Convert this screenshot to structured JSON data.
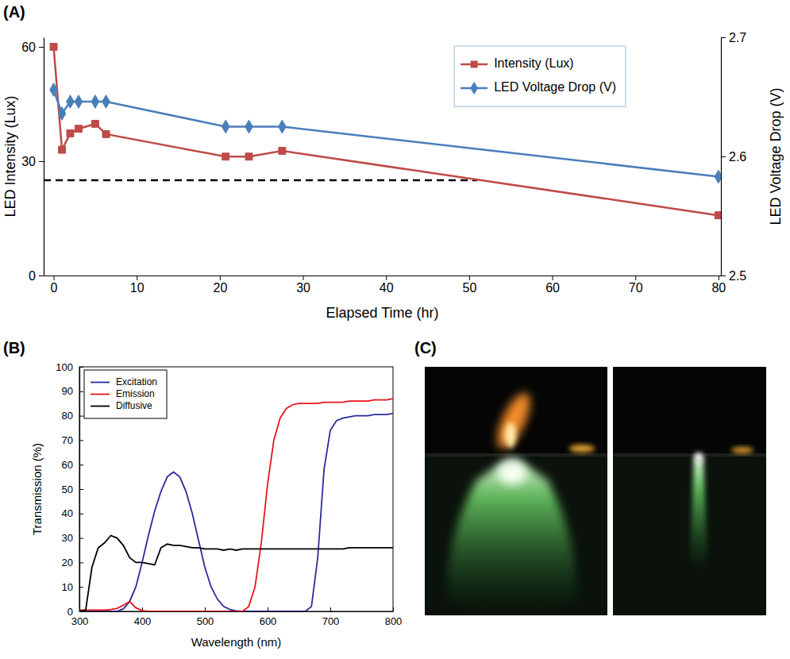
{
  "chart_data": [
    {
      "type": "line",
      "label": "(A)",
      "x": [
        0,
        1,
        2,
        3,
        5,
        6.3,
        20.7,
        23.5,
        27.5,
        80
      ],
      "xlim": [
        -1.2,
        80.3
      ],
      "xticks": [
        0,
        10,
        20,
        30,
        40,
        50,
        60,
        70,
        80
      ],
      "ylim": [
        0,
        62.5
      ],
      "yticks": [
        0,
        30,
        60
      ],
      "y2lim": [
        2.5,
        2.7
      ],
      "y2ticks": [
        2.5,
        2.6,
        2.7
      ],
      "xlabel": "Elapsed Time (hr)",
      "ylabel": "LED Intensity (Lux)",
      "y2label": "LED Voltage Drop (V)",
      "legend": "upper right",
      "threshold": {
        "y": 25,
        "x_end": 51,
        "line_style": "dashed"
      },
      "series": [
        {
          "name": "Intensity (Lux)",
          "color": "#be4b48",
          "marker": "square",
          "line_style": "solid",
          "values": [
            60,
            33,
            37.3,
            38.5,
            39.8,
            37.1,
            31.2,
            31.2,
            32.7,
            15.8
          ]
        },
        {
          "name": "LED Voltage Drop (V)",
          "color": "#4a7ebb",
          "marker": "diamond",
          "line_style": "solid",
          "axis": "y2",
          "values": [
            2.656,
            2.636,
            2.646,
            2.646,
            2.646,
            2.646,
            2.625,
            2.625,
            2.625,
            2.583
          ]
        }
      ]
    },
    {
      "type": "line",
      "label": "(B)",
      "x": [
        300,
        310,
        320,
        330,
        340,
        350,
        360,
        370,
        380,
        390,
        400,
        410,
        420,
        430,
        440,
        450,
        460,
        470,
        480,
        490,
        500,
        510,
        520,
        530,
        540,
        550,
        560,
        570,
        580,
        590,
        600,
        610,
        620,
        630,
        640,
        650,
        660,
        670,
        680,
        690,
        700,
        710,
        720,
        730,
        740,
        750,
        760,
        770,
        780,
        790,
        800
      ],
      "xlim": [
        300,
        800
      ],
      "xticks": [
        300,
        400,
        500,
        600,
        700,
        800
      ],
      "ylim": [
        0,
        100
      ],
      "yticks": [
        0,
        10,
        20,
        30,
        40,
        50,
        60,
        70,
        80,
        90,
        100
      ],
      "xlabel": "Wavelength (nm)",
      "ylabel": "Transmission (%)",
      "legend": "upper left",
      "series": [
        {
          "name": "Excitation",
          "color": "#2b2b9e",
          "line_style": "solid",
          "values": [
            0,
            0,
            0,
            0,
            0,
            0,
            0,
            1,
            4,
            10,
            20,
            31,
            41,
            49,
            55,
            57,
            55,
            49,
            40,
            29,
            18,
            10,
            5,
            2,
            0.8,
            0.2,
            0,
            0,
            0,
            0,
            0,
            0,
            0,
            0,
            0,
            0,
            0,
            2,
            22,
            58,
            74,
            78,
            79,
            79.5,
            80,
            80,
            80,
            80.5,
            80.5,
            80.5,
            81
          ]
        },
        {
          "name": "Emission",
          "color": "#e8151b",
          "line_style": "solid",
          "values": [
            0.5,
            0.5,
            0.5,
            0.5,
            0.5,
            0.8,
            1.2,
            2.5,
            4,
            1.5,
            0.3,
            0,
            0,
            0,
            0,
            0,
            0,
            0,
            0,
            0,
            0,
            0,
            0,
            0,
            0,
            0,
            0,
            2,
            10,
            28,
            52,
            70,
            79,
            83,
            84.5,
            85,
            85,
            85,
            85,
            85.5,
            85.5,
            85.5,
            85.5,
            86,
            86,
            86,
            86,
            86.5,
            86.5,
            86.5,
            87
          ]
        },
        {
          "name": "Diffusive",
          "color": "#000000",
          "line_style": "solid",
          "values": [
            0,
            0.5,
            18,
            26,
            28,
            31,
            30,
            27,
            22,
            20,
            20,
            19.5,
            19,
            26,
            27.5,
            27,
            27,
            26.5,
            26,
            26,
            25.5,
            25.5,
            25.5,
            25,
            25.5,
            25,
            25.5,
            25.5,
            25.5,
            25.5,
            25.5,
            25.5,
            25.5,
            25.5,
            25.5,
            25.5,
            25.5,
            25.5,
            25.5,
            25.5,
            25.5,
            25.5,
            25.5,
            26,
            26,
            26,
            26,
            26,
            26,
            26,
            26
          ]
        }
      ]
    }
  ],
  "photo_panel": {
    "label": "(C)"
  }
}
